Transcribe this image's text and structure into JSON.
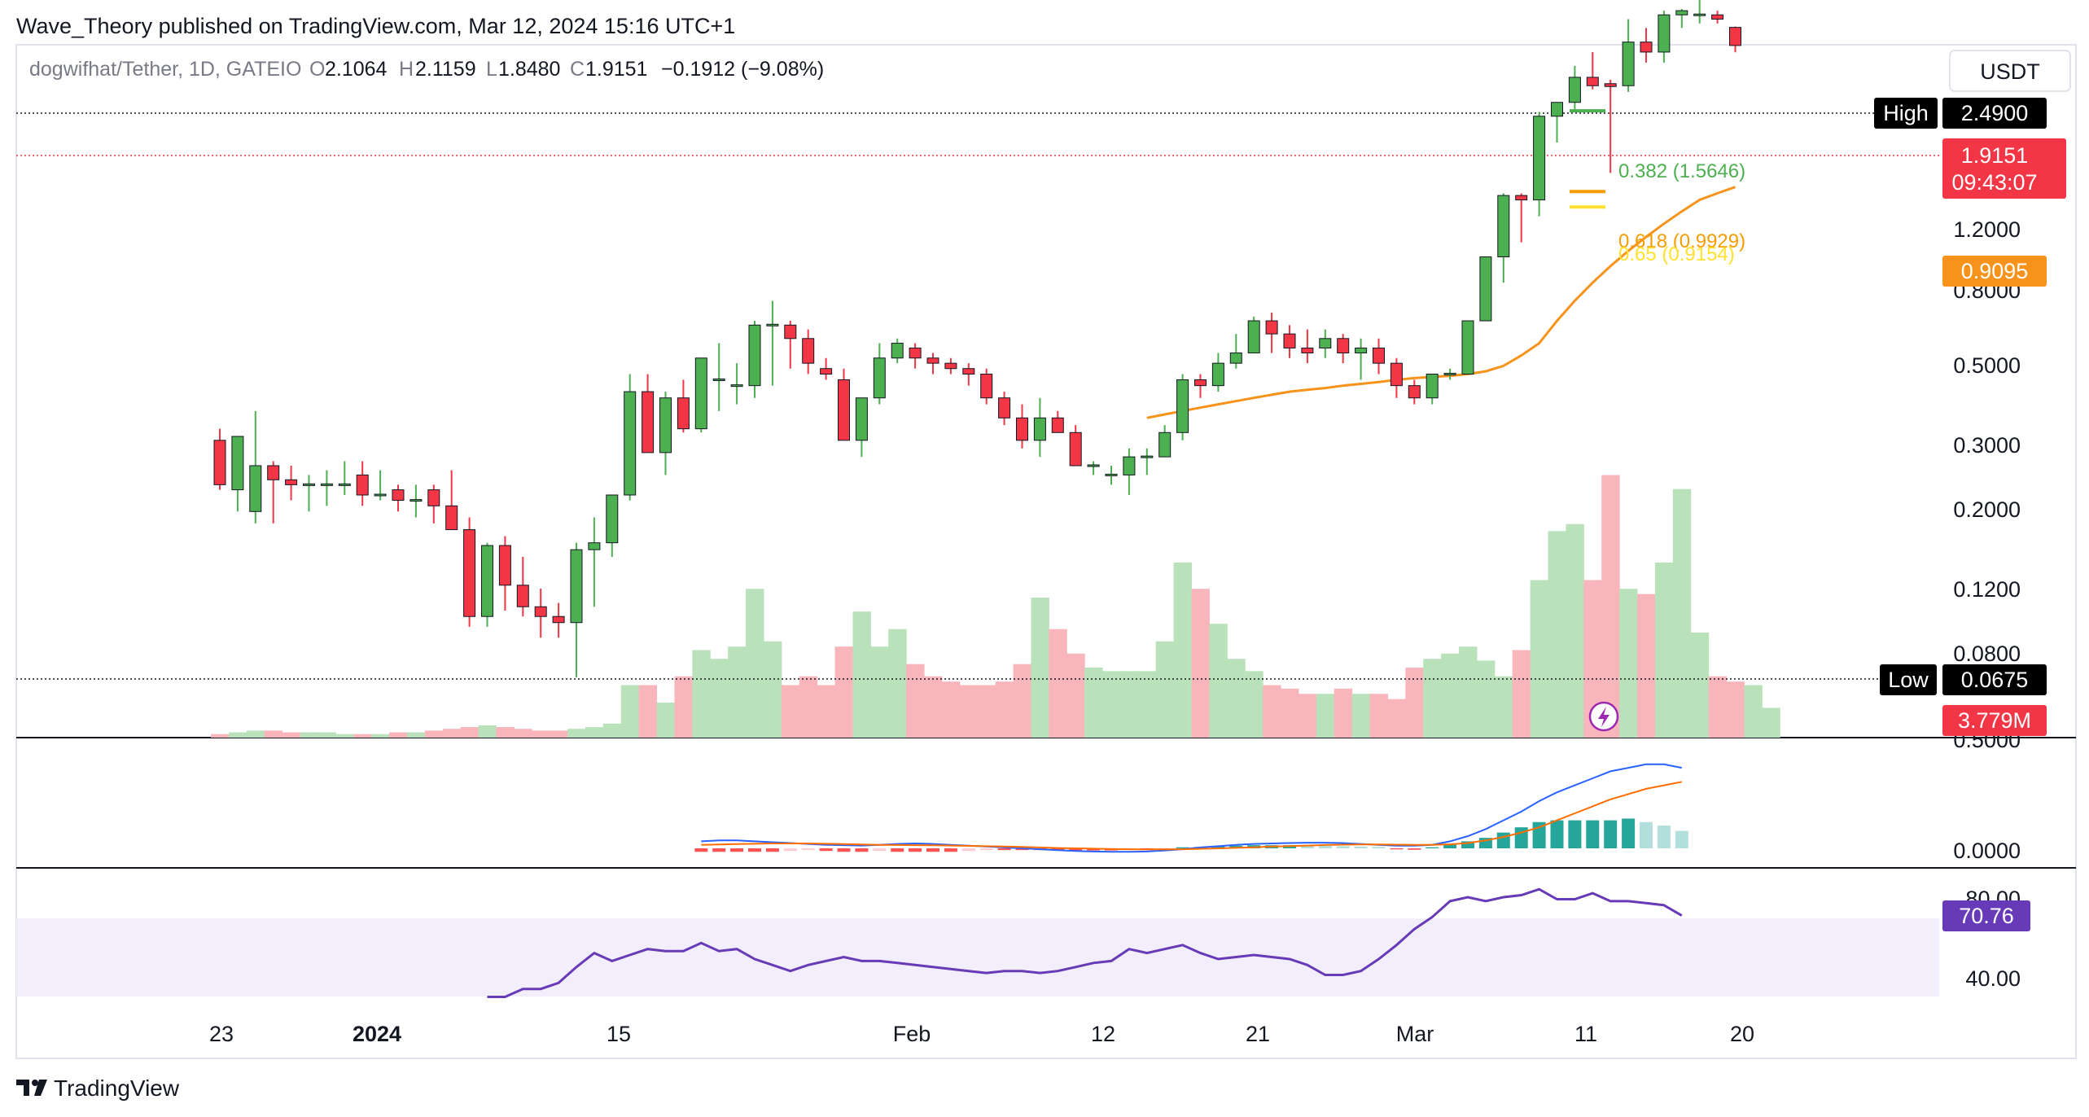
{
  "header": {
    "publisher": "Wave_Theory published on TradingView.com, Mar 12, 2024 15:16 UTC+1",
    "symbol": "dogwifhat/Tether, 1D, GATEIO",
    "o_label": "O",
    "o_value": "2.1064",
    "h_label": "H",
    "h_value": "2.1159",
    "l_label": "L",
    "l_value": "1.8480",
    "c_label": "C",
    "c_value": "1.9151",
    "change": "−0.1912 (−9.08%)",
    "currency": "USDT"
  },
  "footer": {
    "brand": "TradingView"
  },
  "colors": {
    "up": "#4caf50",
    "down": "#f23645",
    "ema": "#f7931a",
    "macd": "#2962ff",
    "signal": "#ff6d00",
    "rsi": "#673ab7",
    "fib382": "#4caf50",
    "fib618": "#f59d00",
    "fib65": "#ffe12e"
  },
  "markers": {
    "high_label": "High",
    "high_value": "2.4900",
    "low_label": "Low",
    "low_value": "0.0675",
    "last_price": "1.9151",
    "countdown": "09:43:07",
    "ema_value": "0.9095",
    "volume_value": "3.779M",
    "rsi_value": "70.76"
  },
  "fib": [
    {
      "label": "0.382 (1.5646)",
      "value": 1.5646
    },
    {
      "label": "0.618 (0.9929)",
      "value": 0.9929
    },
    {
      "label": "0.65 (0.9154)",
      "value": 0.9154
    }
  ],
  "chart_data": [
    {
      "type": "candlestick",
      "title": "dogwifhat/Tether, 1D, GATEIO",
      "scale": "log",
      "y_ticks": [
        "1.2000",
        "0.8000",
        "0.5000",
        "0.3000",
        "0.2000",
        "0.1200",
        "0.0800"
      ],
      "x_ticks": [
        "23",
        "2024",
        "15",
        "Feb",
        "12",
        "21",
        "Mar",
        "11",
        "20"
      ],
      "candles": [
        [
          0.24,
          0.255,
          0.185,
          0.19
        ],
        [
          0.185,
          0.245,
          0.165,
          0.245
        ],
        [
          0.165,
          0.28,
          0.155,
          0.21
        ],
        [
          0.21,
          0.215,
          0.155,
          0.195
        ],
        [
          0.195,
          0.21,
          0.175,
          0.19
        ],
        [
          0.19,
          0.2,
          0.165,
          0.19
        ],
        [
          0.19,
          0.205,
          0.17,
          0.19
        ],
        [
          0.19,
          0.215,
          0.18,
          0.19
        ],
        [
          0.2,
          0.215,
          0.17,
          0.18
        ],
        [
          0.18,
          0.205,
          0.175,
          0.18
        ],
        [
          0.185,
          0.19,
          0.165,
          0.175
        ],
        [
          0.175,
          0.19,
          0.16,
          0.175
        ],
        [
          0.185,
          0.19,
          0.155,
          0.17
        ],
        [
          0.17,
          0.205,
          0.15,
          0.15
        ],
        [
          0.15,
          0.16,
          0.09,
          0.095
        ],
        [
          0.095,
          0.14,
          0.09,
          0.138
        ],
        [
          0.138,
          0.145,
          0.098,
          0.112
        ],
        [
          0.112,
          0.13,
          0.095,
          0.1
        ],
        [
          0.1,
          0.11,
          0.085,
          0.095
        ],
        [
          0.095,
          0.102,
          0.085,
          0.092
        ],
        [
          0.092,
          0.14,
          0.069,
          0.135
        ],
        [
          0.135,
          0.16,
          0.1,
          0.14
        ],
        [
          0.14,
          0.18,
          0.13,
          0.18
        ],
        [
          0.18,
          0.34,
          0.175,
          0.31
        ],
        [
          0.31,
          0.34,
          0.23,
          0.225
        ],
        [
          0.225,
          0.31,
          0.2,
          0.3
        ],
        [
          0.3,
          0.33,
          0.25,
          0.255
        ],
        [
          0.255,
          0.37,
          0.25,
          0.37
        ],
        [
          0.33,
          0.4,
          0.28,
          0.33
        ],
        [
          0.32,
          0.36,
          0.29,
          0.32
        ],
        [
          0.32,
          0.45,
          0.3,
          0.44
        ],
        [
          0.44,
          0.5,
          0.32,
          0.44
        ],
        [
          0.44,
          0.45,
          0.35,
          0.41
        ],
        [
          0.41,
          0.43,
          0.34,
          0.36
        ],
        [
          0.35,
          0.37,
          0.33,
          0.34
        ],
        [
          0.33,
          0.35,
          0.24,
          0.24
        ],
        [
          0.24,
          0.3,
          0.22,
          0.3
        ],
        [
          0.3,
          0.4,
          0.29,
          0.37
        ],
        [
          0.37,
          0.41,
          0.36,
          0.4
        ],
        [
          0.39,
          0.4,
          0.35,
          0.37
        ],
        [
          0.37,
          0.38,
          0.34,
          0.36
        ],
        [
          0.36,
          0.37,
          0.34,
          0.35
        ],
        [
          0.35,
          0.36,
          0.32,
          0.34
        ],
        [
          0.34,
          0.35,
          0.29,
          0.3
        ],
        [
          0.3,
          0.31,
          0.26,
          0.27
        ],
        [
          0.27,
          0.29,
          0.23,
          0.24
        ],
        [
          0.24,
          0.3,
          0.22,
          0.27
        ],
        [
          0.27,
          0.28,
          0.25,
          0.25
        ],
        [
          0.25,
          0.26,
          0.21,
          0.21
        ],
        [
          0.21,
          0.215,
          0.2,
          0.21
        ],
        [
          0.2,
          0.21,
          0.19,
          0.2
        ],
        [
          0.2,
          0.23,
          0.18,
          0.22
        ],
        [
          0.22,
          0.23,
          0.2,
          0.22
        ],
        [
          0.22,
          0.26,
          0.22,
          0.25
        ],
        [
          0.25,
          0.34,
          0.24,
          0.33
        ],
        [
          0.33,
          0.34,
          0.3,
          0.32
        ],
        [
          0.32,
          0.38,
          0.31,
          0.36
        ],
        [
          0.36,
          0.42,
          0.35,
          0.38
        ],
        [
          0.38,
          0.46,
          0.38,
          0.45
        ],
        [
          0.45,
          0.47,
          0.38,
          0.42
        ],
        [
          0.42,
          0.44,
          0.37,
          0.39
        ],
        [
          0.39,
          0.43,
          0.36,
          0.38
        ],
        [
          0.39,
          0.43,
          0.37,
          0.41
        ],
        [
          0.41,
          0.42,
          0.36,
          0.38
        ],
        [
          0.38,
          0.41,
          0.33,
          0.39
        ],
        [
          0.39,
          0.41,
          0.34,
          0.36
        ],
        [
          0.36,
          0.37,
          0.3,
          0.32
        ],
        [
          0.32,
          0.33,
          0.29,
          0.3
        ],
        [
          0.3,
          0.34,
          0.29,
          0.34
        ],
        [
          0.34,
          0.35,
          0.33,
          0.34
        ],
        [
          0.34,
          0.45,
          0.34,
          0.45
        ],
        [
          0.45,
          0.63,
          0.45,
          0.63
        ],
        [
          0.63,
          0.88,
          0.55,
          0.87
        ],
        [
          0.87,
          0.88,
          0.68,
          0.85
        ],
        [
          0.85,
          1.35,
          0.78,
          1.32
        ],
        [
          1.32,
          1.42,
          1.15,
          1.42
        ],
        [
          1.42,
          1.72,
          1.35,
          1.62
        ],
        [
          1.62,
          1.85,
          1.52,
          1.55
        ],
        [
          1.56,
          1.6,
          0.98,
          1.55
        ],
        [
          1.55,
          2.2,
          1.5,
          1.95
        ],
        [
          1.95,
          2.1,
          1.75,
          1.85
        ],
        [
          1.85,
          2.3,
          1.75,
          2.25
        ],
        [
          2.25,
          2.32,
          2.1,
          2.3
        ],
        [
          2.25,
          2.49,
          2.15,
          2.25
        ],
        [
          2.25,
          2.3,
          2.15,
          2.2
        ],
        [
          2.1064,
          2.1159,
          1.848,
          1.9151
        ]
      ],
      "ema_start_index": 52,
      "ema": [
        0.27,
        0.275,
        0.28,
        0.285,
        0.29,
        0.295,
        0.3,
        0.305,
        0.31,
        0.313,
        0.316,
        0.32,
        0.323,
        0.326,
        0.33,
        0.333,
        0.335,
        0.337,
        0.34,
        0.345,
        0.355,
        0.375,
        0.4,
        0.45,
        0.5,
        0.55,
        0.6,
        0.65,
        0.7,
        0.75,
        0.8,
        0.85,
        0.88,
        0.9095
      ],
      "volume_value": "3.779M",
      "volume": [
        0.02,
        0.03,
        0.04,
        0.04,
        0.03,
        0.03,
        0.03,
        0.02,
        0.02,
        0.02,
        0.03,
        0.03,
        0.04,
        0.05,
        0.06,
        0.07,
        0.06,
        0.05,
        0.04,
        0.04,
        0.05,
        0.06,
        0.08,
        0.3,
        0.3,
        0.2,
        0.35,
        0.5,
        0.45,
        0.52,
        0.85,
        0.55,
        0.3,
        0.35,
        0.3,
        0.52,
        0.72,
        0.52,
        0.62,
        0.42,
        0.35,
        0.32,
        0.3,
        0.3,
        0.32,
        0.42,
        0.8,
        0.62,
        0.48,
        0.4,
        0.38,
        0.38,
        0.38,
        0.55,
        1.0,
        0.85,
        0.65,
        0.45,
        0.38,
        0.3,
        0.28,
        0.25,
        0.25,
        0.28,
        0.25,
        0.25,
        0.22,
        0.4,
        0.45,
        0.48,
        0.52,
        0.44,
        0.35,
        0.5,
        0.9,
        1.18,
        1.22,
        0.9,
        1.5,
        0.85,
        0.82,
        1.0,
        1.42,
        0.6,
        0.35,
        0.32,
        0.3,
        0.17
      ]
    },
    {
      "type": "line",
      "title": "MACD",
      "y_ticks": [
        "0.5000",
        "0.0000"
      ],
      "macd_start_index": 27,
      "macd": [
        0.04,
        0.045,
        0.045,
        0.04,
        0.035,
        0.03,
        0.025,
        0.02,
        0.018,
        0.016,
        0.02,
        0.025,
        0.028,
        0.025,
        0.02,
        0.015,
        0.01,
        0.005,
        0.0,
        -0.005,
        -0.01,
        -0.015,
        -0.018,
        -0.02,
        -0.02,
        -0.018,
        -0.012,
        -0.005,
        0.005,
        0.012,
        0.02,
        0.025,
        0.028,
        0.03,
        0.032,
        0.032,
        0.03,
        0.025,
        0.02,
        0.015,
        0.015,
        0.02,
        0.04,
        0.07,
        0.11,
        0.16,
        0.21,
        0.27,
        0.32,
        0.36,
        0.4,
        0.44,
        0.46,
        0.48,
        0.48,
        0.46
      ],
      "signal": [
        0.02,
        0.022,
        0.024,
        0.026,
        0.028,
        0.028,
        0.028,
        0.026,
        0.024,
        0.022,
        0.02,
        0.019,
        0.018,
        0.017,
        0.016,
        0.014,
        0.012,
        0.01,
        0.008,
        0.005,
        0.002,
        0.0,
        -0.002,
        -0.004,
        -0.005,
        -0.006,
        -0.006,
        -0.005,
        -0.003,
        0.0,
        0.003,
        0.006,
        0.01,
        0.013,
        0.016,
        0.019,
        0.021,
        0.022,
        0.022,
        0.021,
        0.02,
        0.02,
        0.023,
        0.03,
        0.045,
        0.065,
        0.09,
        0.12,
        0.16,
        0.2,
        0.24,
        0.28,
        0.31,
        0.34,
        0.36,
        0.38
      ],
      "histogram": [
        -0.02,
        -0.02,
        -0.02,
        -0.02,
        -0.02,
        -0.015,
        -0.01,
        -0.015,
        -0.02,
        -0.02,
        -0.015,
        -0.02,
        -0.02,
        -0.02,
        -0.02,
        -0.015,
        -0.01,
        -0.01,
        -0.01,
        -0.01,
        -0.01,
        -0.012,
        -0.012,
        -0.012,
        -0.01,
        -0.01,
        -0.008,
        0.006,
        0.008,
        0.012,
        0.015,
        0.018,
        0.018,
        0.018,
        0.016,
        0.014,
        0.012,
        0.01,
        0.008,
        -0.006,
        -0.008,
        0.006,
        0.02,
        0.04,
        0.06,
        0.09,
        0.12,
        0.15,
        0.16,
        0.16,
        0.16,
        0.16,
        0.17,
        0.15,
        0.13,
        0.1
      ]
    },
    {
      "type": "line",
      "title": "RSI",
      "y_ticks": [
        "80.00",
        "40.00"
      ],
      "band": [
        30,
        70
      ],
      "rsi_start_index": 15,
      "rsi": [
        30,
        30,
        34,
        34,
        37,
        45,
        52,
        48,
        51,
        54,
        53,
        53,
        57,
        53,
        54,
        49,
        46,
        43,
        46,
        48,
        50,
        48,
        48,
        47,
        46,
        45,
        44,
        43,
        42,
        43,
        43,
        42,
        43,
        45,
        47,
        48,
        54,
        52,
        54,
        56,
        52,
        49,
        50,
        51,
        50,
        49,
        46,
        41,
        41,
        43,
        49,
        56,
        64,
        70,
        78,
        80,
        78,
        80,
        81,
        84,
        79,
        79,
        82,
        78,
        78,
        77,
        76,
        70.76
      ]
    }
  ]
}
